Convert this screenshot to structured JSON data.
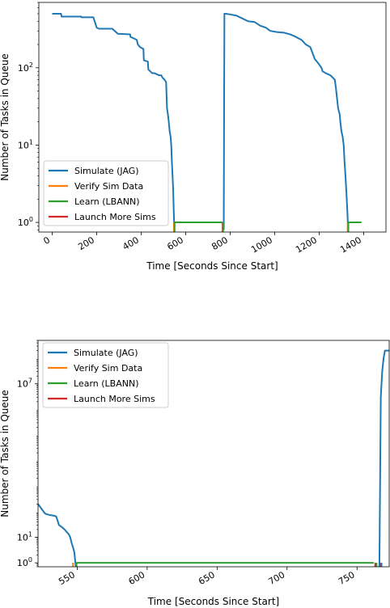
{
  "chart_data": [
    {
      "type": "line",
      "title": "",
      "xlabel": "Time [Seconds Since Start]",
      "ylabel": "Number of Tasks in Queue",
      "yscale": "log",
      "xlim": [
        -60,
        1500
      ],
      "ylim": [
        0.75,
        700
      ],
      "xticks": [
        0,
        200,
        400,
        600,
        800,
        1000,
        1200,
        1400
      ],
      "xtick_labels": [
        "0",
        "200",
        "400",
        "600",
        "800",
        "1000",
        "1200",
        "1400"
      ],
      "yticks": [
        1,
        10,
        100
      ],
      "ytick_exponents": [
        "0",
        "1",
        "2"
      ],
      "ytick_base": "10",
      "legend_position": "lower-left",
      "series": [
        {
          "name": "Simulate (JAG)",
          "color": "#1f77b4",
          "x": [
            0,
            40,
            42,
            130,
            132,
            185,
            200,
            210,
            270,
            295,
            350,
            352,
            360,
            380,
            385,
            395,
            402,
            410,
            412,
            430,
            432,
            450,
            460,
            480,
            490,
            495,
            505,
            512,
            516,
            520,
            524,
            528,
            532,
            535,
            538,
            541,
            544,
            546,
            549
          ],
          "y": [
            500,
            500,
            460,
            460,
            450,
            450,
            330,
            320,
            320,
            275,
            270,
            250,
            245,
            230,
            200,
            185,
            180,
            175,
            125,
            120,
            95,
            85,
            85,
            80,
            80,
            75,
            70,
            65,
            30,
            25,
            20,
            15,
            13,
            10,
            6,
            4,
            2.5,
            1.5,
            0.8
          ]
        },
        {
          "name": "Simulate (JAG)",
          "color": "#1f77b4",
          "x": [
            771,
            774,
            780,
            800,
            830,
            880,
            910,
            935,
            960,
            980,
            1010,
            1040,
            1070,
            1090,
            1120,
            1140,
            1160,
            1180,
            1195,
            1210,
            1215,
            1230,
            1250,
            1260,
            1270,
            1275,
            1285,
            1292,
            1295,
            1300,
            1305,
            1310,
            1314,
            1318,
            1322,
            1326,
            1330
          ],
          "y": [
            0.8,
            500,
            500,
            490,
            470,
            400,
            390,
            350,
            330,
            300,
            290,
            285,
            270,
            255,
            230,
            200,
            185,
            130,
            115,
            100,
            90,
            85,
            80,
            75,
            70,
            55,
            30,
            25,
            20,
            15,
            13,
            10,
            6,
            4,
            2.5,
            1.5,
            0.8
          ]
        },
        {
          "name": "Learn (LBANN)",
          "color": "#2ca02c",
          "x": [
            549,
            765
          ],
          "y": [
            1,
            1
          ]
        },
        {
          "name": "Learn (LBANN)",
          "color": "#2ca02c",
          "x": [
            1330,
            1390
          ],
          "y": [
            1,
            1
          ]
        }
      ],
      "legend": [
        {
          "name": "Simulate (JAG)",
          "color": "#1f77b4"
        },
        {
          "name": "Verify Sim Data",
          "color": "#ff7f0e"
        },
        {
          "name": "Learn (LBANN)",
          "color": "#2ca02c"
        },
        {
          "name": "Launch More Sims",
          "color": "#d62728"
        }
      ],
      "vmarks": [
        {
          "name": "Verify Sim Data",
          "color": "#ff7f0e",
          "x": 547
        },
        {
          "name": "Learn (LBANN)",
          "color": "#2ca02c",
          "x": 550
        },
        {
          "name": "Launch More Sims",
          "color": "#d62728",
          "x": 766
        },
        {
          "name": "Learn (LBANN)",
          "color": "#2ca02c",
          "x": 768
        },
        {
          "name": "Verify Sim Data",
          "color": "#ff7f0e",
          "x": 1328
        },
        {
          "name": "Learn (LBANN)",
          "color": "#2ca02c",
          "x": 1331
        }
      ]
    },
    {
      "type": "line",
      "title": "",
      "xlabel": "Time [Seconds Since Start]",
      "ylabel": "Number of Tasks in Queue",
      "yscale": "log",
      "xlim": [
        522,
        773
      ],
      "ylim": [
        0.7,
        500000000.0
      ],
      "xticks": [
        550,
        600,
        650,
        700,
        750
      ],
      "xtick_labels": [
        "550",
        "600",
        "650",
        "700",
        "750"
      ],
      "yticks": [
        1,
        10,
        10000000
      ],
      "ytick_exponents": [
        "0",
        "1",
        "7"
      ],
      "ytick_base": "10",
      "legend_position": "upper-left",
      "series": [
        {
          "name": "Simulate (JAG)",
          "color": "#1f77b4",
          "x": [
            522,
            524,
            526,
            527,
            528,
            530,
            533,
            535,
            537,
            539,
            541,
            543,
            544,
            545,
            546,
            547,
            548,
            549
          ],
          "y": [
            200,
            140,
            100,
            85,
            80,
            75,
            70,
            65,
            30,
            25,
            20,
            15,
            13,
            10,
            6,
            4,
            2.5,
            0.7
          ]
        },
        {
          "name": "Simulate (JAG)",
          "color": "#1f77b4",
          "x": [
            766,
            767,
            768,
            769,
            770,
            773
          ],
          "y": [
            0.7,
            3000000,
            30000000,
            100000000,
            200000000,
            200000000
          ]
        },
        {
          "name": "Learn (LBANN)",
          "color": "#2ca02c",
          "x": [
            549,
            762
          ],
          "y": [
            1,
            1
          ]
        }
      ],
      "legend": [
        {
          "name": "Simulate (JAG)",
          "color": "#1f77b4"
        },
        {
          "name": "Verify Sim Data",
          "color": "#ff7f0e"
        },
        {
          "name": "Learn (LBANN)",
          "color": "#2ca02c"
        },
        {
          "name": "Launch More Sims",
          "color": "#d62728"
        }
      ],
      "vmarks": [
        {
          "name": "Verify Sim Data",
          "color": "#ff7f0e",
          "x": 547
        },
        {
          "name": "Learn (LBANN)",
          "color": "#2ca02c",
          "x": 549.5
        },
        {
          "name": "Launch More Sims",
          "color": "#d62728",
          "x": 763
        },
        {
          "name": "Learn (LBANN)",
          "color": "#2ca02c",
          "x": 764
        },
        {
          "name": "Launch More Sims",
          "color": "#d62728",
          "x": 767
        },
        {
          "name": "Simulate (JAG)",
          "color": "#1f77b4",
          "x": 767.5
        }
      ]
    }
  ]
}
